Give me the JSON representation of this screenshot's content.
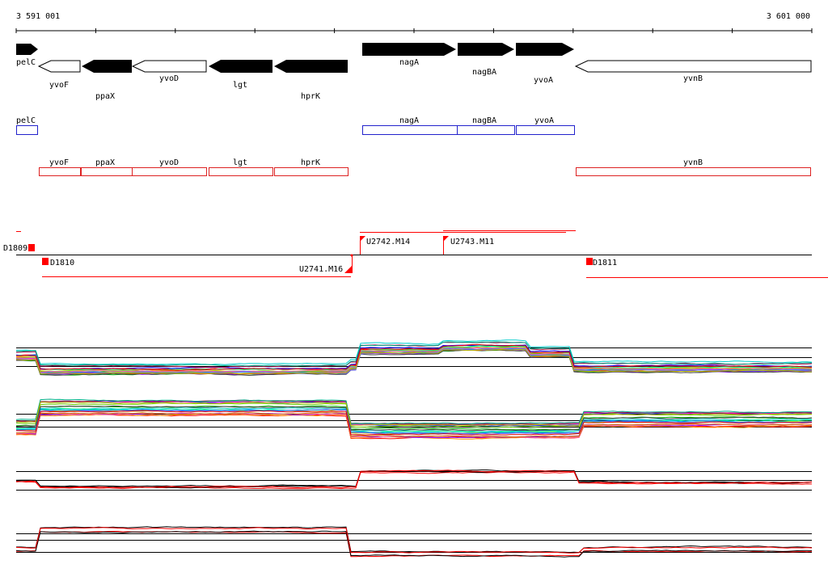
{
  "ruler": {
    "start_label": "3 591 001",
    "end_label": "3 601 000"
  },
  "colors": {
    "gene_fill": "#000000",
    "transcript_plus": "#2222cc",
    "transcript_minus": "#dd2222",
    "segment": "#ff0000"
  },
  "genes": [
    {
      "name": "pelC",
      "strand": "+",
      "filled": true
    },
    {
      "name": "yvoF",
      "strand": "-",
      "filled": false
    },
    {
      "name": "ppaX",
      "strand": "-",
      "filled": true
    },
    {
      "name": "yvoD",
      "strand": "-",
      "filled": false
    },
    {
      "name": "lgt",
      "strand": "-",
      "filled": true
    },
    {
      "name": "hprK",
      "strand": "-",
      "filled": true
    },
    {
      "name": "nagA",
      "strand": "+",
      "filled": true
    },
    {
      "name": "nagBA",
      "strand": "+",
      "filled": true
    },
    {
      "name": "yvoA",
      "strand": "+",
      "filled": true
    },
    {
      "name": "yvnB",
      "strand": "-",
      "filled": false
    }
  ],
  "transcripts_plus": [
    "pelC",
    "nagA",
    "nagBA",
    "yvoA"
  ],
  "transcripts_minus": [
    "yvoF",
    "ppaX",
    "yvoD",
    "lgt",
    "hprK",
    "yvnB"
  ],
  "segments": [
    "D1809",
    "D1810",
    "U2741.M16",
    "U2742.M14",
    "U2743.M11",
    "D1811"
  ]
}
